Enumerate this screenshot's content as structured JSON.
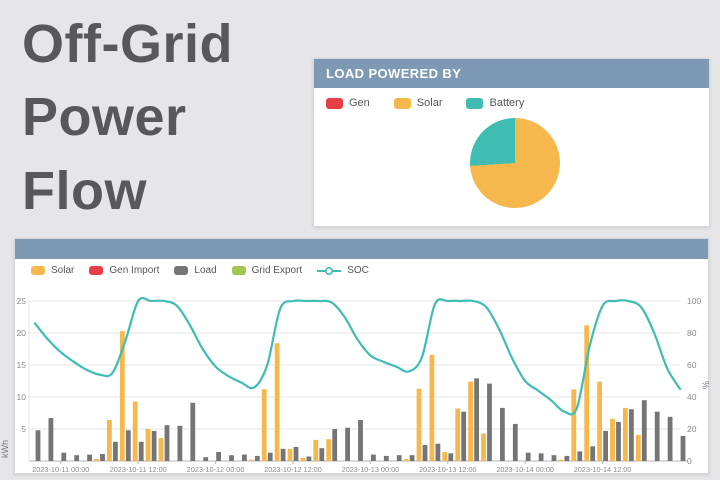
{
  "page": {
    "title": "Off-Grid\nPower\nFlow"
  },
  "pie_panel": {
    "header": "LOAD POWERED BY"
  },
  "flow_panel": {
    "header": ""
  },
  "chart_data": [
    {
      "type": "pie",
      "title": "LOAD POWERED BY",
      "legend_position": "top-left",
      "slices": [
        {
          "label": "Gen",
          "value": 0,
          "color": "#e73e48"
        },
        {
          "label": "Solar",
          "value": 74,
          "color": "#f6b84c"
        },
        {
          "label": "Battery",
          "value": 26,
          "color": "#3fbdb3"
        }
      ]
    },
    {
      "type": "bar",
      "title": "",
      "legend_position": "top-left",
      "xlabel": "",
      "ylabel_left": "kWh",
      "ylabel_right": "%",
      "ylim_left": [
        0,
        25
      ],
      "ylim_right": [
        0,
        100
      ],
      "yticks_left": [
        5,
        10,
        15,
        20,
        25
      ],
      "yticks_right": [
        0,
        20,
        40,
        60,
        80,
        100
      ],
      "grid": true,
      "interval_hours": 2,
      "categories": [
        "2023-10-10 20:00",
        "2023-10-10 22:00",
        "2023-10-11 00:00",
        "2023-10-11 02:00",
        "2023-10-11 04:00",
        "2023-10-11 06:00",
        "2023-10-11 08:00",
        "2023-10-11 10:00",
        "2023-10-11 12:00",
        "2023-10-11 14:00",
        "2023-10-11 16:00",
        "2023-10-11 18:00",
        "2023-10-11 20:00",
        "2023-10-11 22:00",
        "2023-10-12 00:00",
        "2023-10-12 02:00",
        "2023-10-12 04:00",
        "2023-10-12 06:00",
        "2023-10-12 08:00",
        "2023-10-12 10:00",
        "2023-10-12 12:00",
        "2023-10-12 14:00",
        "2023-10-12 16:00",
        "2023-10-12 18:00",
        "2023-10-12 20:00",
        "2023-10-12 22:00",
        "2023-10-13 00:00",
        "2023-10-13 02:00",
        "2023-10-13 04:00",
        "2023-10-13 06:00",
        "2023-10-13 08:00",
        "2023-10-13 10:00",
        "2023-10-13 12:00",
        "2023-10-13 14:00",
        "2023-10-13 16:00",
        "2023-10-13 18:00",
        "2023-10-13 20:00",
        "2023-10-13 22:00",
        "2023-10-14 00:00",
        "2023-10-14 02:00",
        "2023-10-14 04:00",
        "2023-10-14 06:00",
        "2023-10-14 08:00",
        "2023-10-14 10:00",
        "2023-10-14 12:00",
        "2023-10-14 14:00",
        "2023-10-14 16:00",
        "2023-10-14 18:00",
        "2023-10-14 20:00",
        "2023-10-14 22:00",
        "2023-10-15 00:00"
      ],
      "xticks": [
        "2023-10-11 00:00",
        "2023-10-11 12:00",
        "2023-10-12 00:00",
        "2023-10-12 12:00",
        "2023-10-13 00:00",
        "2023-10-13 12:00",
        "2023-10-14 00:00",
        "2023-10-14 12:00"
      ],
      "xtick_bins": [
        2,
        8,
        14,
        20,
        26,
        32,
        38,
        44
      ],
      "series": [
        {
          "name": "Solar",
          "type": "bar",
          "color": "#f6b84c",
          "axis": "left",
          "values": [
            0,
            0,
            0,
            0,
            0,
            0.3,
            6.4,
            20.3,
            9.3,
            5,
            3.6,
            0,
            0,
            0,
            0,
            0,
            0,
            0.2,
            11.2,
            18.4,
            1.9,
            0.5,
            3.3,
            3.4,
            0,
            0,
            0,
            0,
            0,
            0.3,
            11.3,
            16.6,
            1.4,
            8.2,
            12.4,
            4.3,
            0,
            0,
            0,
            0,
            0,
            0.2,
            11.2,
            21.2,
            12.4,
            6.6,
            8.3,
            4.1,
            0,
            0,
            0
          ]
        },
        {
          "name": "Gen Import",
          "type": "bar",
          "color": "#e73e48",
          "axis": "left",
          "values": [
            0,
            0,
            0,
            0,
            0,
            0,
            0,
            0,
            0,
            0,
            0,
            0,
            0,
            0,
            0,
            0,
            0,
            0,
            0,
            0,
            0,
            0,
            0,
            0,
            0,
            0,
            0,
            0,
            0,
            0,
            0,
            0,
            0,
            0,
            0,
            0,
            0,
            0,
            0,
            0,
            0,
            0,
            0,
            0,
            0,
            0,
            0,
            0,
            0,
            0,
            0
          ]
        },
        {
          "name": "Load",
          "type": "bar",
          "color": "#757575",
          "axis": "left",
          "values": [
            4.8,
            6.7,
            1.3,
            0.9,
            1,
            1.1,
            3,
            4.8,
            3,
            4.7,
            5.6,
            5.5,
            9.1,
            0.6,
            1.4,
            0.9,
            1,
            0.8,
            1.3,
            1.9,
            2.2,
            0.7,
            2,
            5,
            5.2,
            6.4,
            1,
            0.8,
            0.9,
            0.9,
            2.5,
            2.7,
            1.2,
            7.7,
            12.9,
            12.1,
            8.3,
            5.8,
            1.3,
            1.2,
            0.9,
            0.8,
            1.5,
            2.3,
            4.7,
            6.1,
            8.1,
            9.5,
            7.7,
            6.9,
            3.9
          ]
        },
        {
          "name": "Grid Export",
          "type": "bar",
          "color": "#a4c64f",
          "axis": "left",
          "values": [
            0,
            0,
            0,
            0,
            0,
            0,
            0,
            0,
            0,
            0,
            0,
            0,
            0,
            0,
            0,
            0,
            0,
            0,
            0,
            0,
            0,
            0,
            0,
            0,
            0,
            0,
            0,
            0,
            0,
            0,
            0,
            0,
            0,
            0,
            0,
            0,
            0,
            0,
            0,
            0,
            0,
            0,
            0,
            0,
            0,
            0,
            0,
            0,
            0,
            0,
            0
          ]
        },
        {
          "name": "SOC",
          "type": "line",
          "color": "#3fbdb3",
          "axis": "right",
          "values": [
            86,
            76,
            68,
            62,
            57,
            54,
            55,
            75,
            100,
            100,
            100,
            97,
            85,
            70,
            59,
            53,
            49,
            46,
            60,
            95,
            100,
            100,
            100,
            99,
            90,
            76,
            66,
            62,
            59,
            56,
            65,
            98,
            100,
            100,
            100,
            96,
            82,
            64,
            50,
            44,
            38,
            31,
            33,
            72,
            97,
            100,
            100,
            96,
            80,
            58,
            45
          ]
        }
      ]
    }
  ]
}
